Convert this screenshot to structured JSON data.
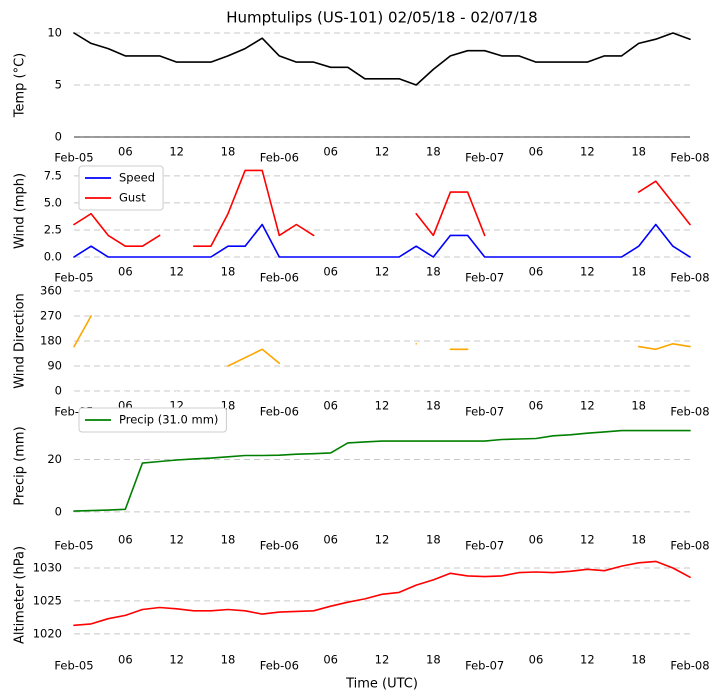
{
  "chart_data": [
    {
      "type": "line",
      "title": "Humptulips (US-101) 02/05/18 - 02/07/18",
      "ylabel": "Temp (°C)",
      "x": [
        0,
        2,
        4,
        6,
        8,
        10,
        12,
        14,
        16,
        18,
        20,
        22,
        24,
        26,
        28,
        30,
        32,
        34,
        36,
        38,
        40,
        42,
        44,
        46,
        48,
        50,
        52,
        54,
        56,
        58,
        60,
        62,
        64,
        66,
        68,
        70,
        72
      ],
      "xlim": [
        0,
        72
      ],
      "xticks": [
        {
          "value": 0,
          "label": "Feb-05"
        },
        {
          "value": 6,
          "label": "06"
        },
        {
          "value": 12,
          "label": "12"
        },
        {
          "value": 18,
          "label": "18"
        },
        {
          "value": 24,
          "label": "Feb-06"
        },
        {
          "value": 30,
          "label": "06"
        },
        {
          "value": 36,
          "label": "12"
        },
        {
          "value": 42,
          "label": "18"
        },
        {
          "value": 48,
          "label": "Feb-07"
        },
        {
          "value": 54,
          "label": "06"
        },
        {
          "value": 60,
          "label": "12"
        },
        {
          "value": 66,
          "label": "18"
        },
        {
          "value": 72,
          "label": "Feb-08"
        }
      ],
      "ylim": [
        0,
        10
      ],
      "yticks": [
        0,
        5,
        10
      ],
      "grid": true,
      "x_axis_line": true,
      "series": [
        {
          "color": "#000000",
          "values": [
            10,
            9.0,
            8.5,
            7.8,
            7.8,
            7.8,
            7.2,
            7.2,
            7.2,
            7.8,
            8.5,
            9.5,
            7.8,
            7.2,
            7.2,
            6.7,
            6.7,
            5.6,
            5.6,
            5.6,
            5.0,
            6.5,
            7.8,
            8.3,
            8.3,
            7.8,
            7.8,
            7.2,
            7.2,
            7.2,
            7.2,
            7.8,
            7.8,
            9.0,
            9.4,
            10,
            9.4
          ]
        }
      ]
    },
    {
      "type": "line",
      "ylabel": "Wind (mph)",
      "x": [
        0,
        2,
        4,
        6,
        8,
        10,
        12,
        14,
        16,
        18,
        20,
        22,
        24,
        26,
        28,
        30,
        32,
        34,
        36,
        38,
        40,
        42,
        44,
        46,
        48,
        50,
        52,
        54,
        56,
        58,
        60,
        62,
        64,
        66,
        68,
        70,
        72
      ],
      "xlim": [
        0,
        72
      ],
      "xticks": [
        {
          "value": 0,
          "label": "Feb-05"
        },
        {
          "value": 6,
          "label": "06"
        },
        {
          "value": 12,
          "label": "12"
        },
        {
          "value": 18,
          "label": "18"
        },
        {
          "value": 24,
          "label": "Feb-06"
        },
        {
          "value": 30,
          "label": "06"
        },
        {
          "value": 36,
          "label": "12"
        },
        {
          "value": 42,
          "label": "18"
        },
        {
          "value": 48,
          "label": "Feb-07"
        },
        {
          "value": 54,
          "label": "06"
        },
        {
          "value": 60,
          "label": "12"
        },
        {
          "value": 66,
          "label": "18"
        },
        {
          "value": 72,
          "label": "Feb-08"
        }
      ],
      "ylim": [
        0,
        8.5
      ],
      "yticks": [
        {
          "value": 0,
          "label": "0.0"
        },
        {
          "value": 2.5,
          "label": "2.5"
        },
        {
          "value": 5,
          "label": "5.0"
        },
        {
          "value": 7.5,
          "label": "7.5"
        }
      ],
      "grid": true,
      "legend": "upper left",
      "series": [
        {
          "name": "Speed",
          "color": "#0000ff",
          "values": [
            0,
            1,
            0,
            0,
            0,
            0,
            0,
            0,
            0,
            1,
            1,
            3,
            0,
            0,
            0,
            0,
            0,
            0,
            0,
            0,
            1,
            0,
            2,
            2,
            0,
            0,
            0,
            0,
            0,
            0,
            0,
            0,
            0,
            1,
            3,
            1,
            0
          ]
        },
        {
          "name": "Gust",
          "color": "#ff0000",
          "values": [
            3,
            4,
            2,
            1,
            1,
            2,
            null,
            1,
            1,
            4,
            8,
            8,
            2,
            3,
            2,
            null,
            null,
            null,
            null,
            null,
            4,
            2,
            6,
            6,
            2,
            null,
            null,
            null,
            null,
            null,
            null,
            null,
            null,
            6,
            7,
            5,
            3
          ]
        }
      ]
    },
    {
      "type": "line",
      "ylabel": "Wind Direction",
      "x": [
        0,
        2,
        4,
        6,
        8,
        10,
        12,
        14,
        16,
        18,
        20,
        22,
        24,
        26,
        28,
        30,
        32,
        34,
        36,
        38,
        40,
        42,
        44,
        46,
        48,
        50,
        52,
        54,
        56,
        58,
        60,
        62,
        64,
        66,
        68,
        70,
        72
      ],
      "xlim": [
        0,
        72
      ],
      "xticks": [
        {
          "value": 0,
          "label": "Feb-05"
        },
        {
          "value": 6,
          "label": "06"
        },
        {
          "value": 12,
          "label": "12"
        },
        {
          "value": 18,
          "label": "18"
        },
        {
          "value": 24,
          "label": "Feb-06"
        },
        {
          "value": 30,
          "label": "06"
        },
        {
          "value": 36,
          "label": "12"
        },
        {
          "value": 42,
          "label": "18"
        },
        {
          "value": 48,
          "label": "Feb-07"
        },
        {
          "value": 54,
          "label": "06"
        },
        {
          "value": 60,
          "label": "12"
        },
        {
          "value": 66,
          "label": "18"
        },
        {
          "value": 72,
          "label": "Feb-08"
        }
      ],
      "ylim": [
        0,
        360
      ],
      "yticks": [
        0,
        90,
        180,
        270,
        360
      ],
      "grid": true,
      "series": [
        {
          "color": "#ffa500",
          "values": [
            160,
            270,
            null,
            null,
            null,
            null,
            null,
            null,
            null,
            90,
            120,
            150,
            100,
            null,
            null,
            null,
            null,
            null,
            null,
            null,
            170,
            null,
            150,
            150,
            null,
            null,
            null,
            null,
            null,
            null,
            null,
            null,
            null,
            160,
            150,
            170,
            160
          ]
        }
      ]
    },
    {
      "type": "line",
      "ylabel": "Precip (mm)",
      "x": [
        0,
        2,
        4,
        6,
        8,
        10,
        12,
        14,
        16,
        18,
        20,
        22,
        24,
        26,
        28,
        30,
        32,
        34,
        36,
        38,
        40,
        42,
        44,
        46,
        48,
        50,
        52,
        54,
        56,
        58,
        60,
        62,
        64,
        66,
        68,
        70,
        72
      ],
      "xlim": [
        0,
        72
      ],
      "xticks": [
        {
          "value": 0,
          "label": "Feb-05"
        },
        {
          "value": 6,
          "label": "06"
        },
        {
          "value": 12,
          "label": "12"
        },
        {
          "value": 18,
          "label": "18"
        },
        {
          "value": 24,
          "label": "Feb-06"
        },
        {
          "value": 30,
          "label": "06"
        },
        {
          "value": 36,
          "label": "12"
        },
        {
          "value": 42,
          "label": "18"
        },
        {
          "value": 48,
          "label": "Feb-07"
        },
        {
          "value": 54,
          "label": "06"
        },
        {
          "value": 60,
          "label": "12"
        },
        {
          "value": 66,
          "label": "18"
        },
        {
          "value": 72,
          "label": "Feb-08"
        }
      ],
      "ylim": [
        -5,
        40
      ],
      "yticks": [
        0,
        20
      ],
      "grid": true,
      "legend": "upper left",
      "series": [
        {
          "name": "Precip (31.0 mm)",
          "color": "#008000",
          "values": [
            0.3,
            0.5,
            0.7,
            1,
            18.6,
            19.2,
            19.8,
            20.2,
            20.5,
            21,
            21.5,
            21.5,
            21.6,
            22,
            22.2,
            22.5,
            26.3,
            26.7,
            27,
            27,
            27,
            27,
            27,
            27,
            27,
            27.6,
            27.8,
            28,
            29,
            29.4,
            30,
            30.5,
            31,
            31,
            31,
            31,
            31
          ]
        }
      ]
    },
    {
      "type": "line",
      "ylabel": "Altimeter (hPa)",
      "xlabel": "Time (UTC)",
      "x": [
        0,
        2,
        4,
        6,
        8,
        10,
        12,
        14,
        16,
        18,
        20,
        22,
        24,
        26,
        28,
        30,
        32,
        34,
        36,
        38,
        40,
        42,
        44,
        46,
        48,
        50,
        52,
        54,
        56,
        58,
        60,
        62,
        64,
        66,
        68,
        70,
        72
      ],
      "xlim": [
        0,
        72
      ],
      "xticks": [
        {
          "value": 0,
          "label": "Feb-05"
        },
        {
          "value": 6,
          "label": "06"
        },
        {
          "value": 12,
          "label": "12"
        },
        {
          "value": 18,
          "label": "18"
        },
        {
          "value": 24,
          "label": "Feb-06"
        },
        {
          "value": 30,
          "label": "06"
        },
        {
          "value": 36,
          "label": "12"
        },
        {
          "value": 42,
          "label": "18"
        },
        {
          "value": 48,
          "label": "Feb-07"
        },
        {
          "value": 54,
          "label": "06"
        },
        {
          "value": 60,
          "label": "12"
        },
        {
          "value": 66,
          "label": "18"
        },
        {
          "value": 72,
          "label": "Feb-08"
        }
      ],
      "ylim": [
        1018.3,
        1033.5
      ],
      "yticks": [
        1020,
        1025,
        1030
      ],
      "grid": true,
      "series": [
        {
          "color": "#ff0000",
          "values": [
            1021.3,
            1021.5,
            1022.3,
            1022.8,
            1023.7,
            1024,
            1023.8,
            1023.5,
            1023.5,
            1023.7,
            1023.5,
            1023,
            1023.3,
            1023.4,
            1023.5,
            1024.2,
            1024.8,
            1025.3,
            1026,
            1026.3,
            1027.4,
            1028.2,
            1029.2,
            1028.8,
            1028.7,
            1028.8,
            1029.3,
            1029.4,
            1029.3,
            1029.5,
            1029.8,
            1029.6,
            1030.3,
            1030.8,
            1031,
            1030,
            1028.6
          ]
        }
      ]
    }
  ]
}
